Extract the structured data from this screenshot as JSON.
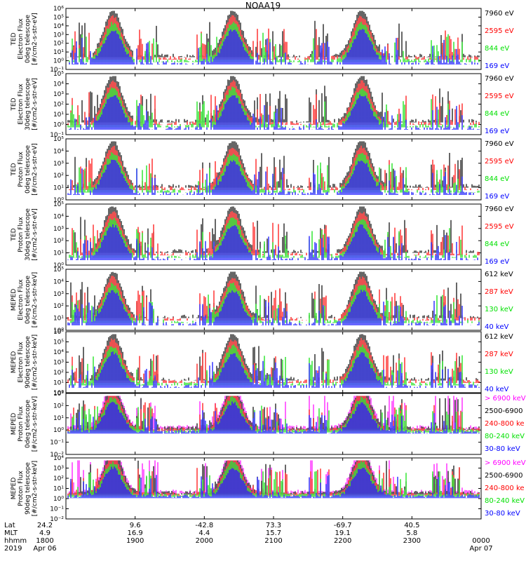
{
  "title": "NOAA19",
  "colors": {
    "black": "#000000",
    "red": "#ff0000",
    "green": "#00e000",
    "blue": "#0000ff",
    "magenta": "#ff00ff"
  },
  "chart_data": [
    {
      "type": "line",
      "ylabel": [
        "TED",
        "Electron Flux",
        "0deg telescope",
        "[#/cm2-s-str-eV]"
      ],
      "yticks": [
        "10⁻¹",
        "10⁰",
        "10¹",
        "10²",
        "10³",
        "10⁴",
        "10⁵",
        "10⁶"
      ],
      "ylim": [
        -1,
        6
      ],
      "log": true,
      "series": [
        {
          "name": "7960 eV",
          "color": "#000000"
        },
        {
          "name": "2595 eV",
          "color": "#ff0000"
        },
        {
          "name": "844 eV",
          "color": "#00e000"
        },
        {
          "name": "169 eV",
          "color": "#0000ff"
        }
      ]
    },
    {
      "type": "line",
      "ylabel": [
        "TED",
        "Electron Flux",
        "30deg telescope",
        "[#/cm2-s-str-eV]"
      ],
      "yticks": [
        "10⁻¹",
        "10⁰",
        "10¹",
        "10²",
        "10³",
        "10⁴",
        "10⁵"
      ],
      "ylim": [
        -1,
        5
      ],
      "log": true,
      "series": [
        {
          "name": "7960 eV",
          "color": "#000000"
        },
        {
          "name": "2595 eV",
          "color": "#ff0000"
        },
        {
          "name": "844 eV",
          "color": "#00e000"
        },
        {
          "name": "169 eV",
          "color": "#0000ff"
        }
      ]
    },
    {
      "type": "line",
      "ylabel": [
        "TED",
        "Proton Flux",
        "0deg telescope",
        "[#/cm2-s-str-eV]"
      ],
      "yticks": [
        "10⁰",
        "10¹",
        "10²",
        "10³",
        "10⁴",
        "10⁵"
      ],
      "ylim": [
        0,
        5
      ],
      "log": true,
      "series": [
        {
          "name": "7960 eV",
          "color": "#000000"
        },
        {
          "name": "2595 eV",
          "color": "#ff0000"
        },
        {
          "name": "844 eV",
          "color": "#00e000"
        },
        {
          "name": "169 eV",
          "color": "#0000ff"
        }
      ]
    },
    {
      "type": "line",
      "ylabel": [
        "TED",
        "Proton Flux",
        "30deg telescope",
        "[#/cm2-s-str-eV]"
      ],
      "yticks": [
        "10⁰",
        "10¹",
        "10²",
        "10³",
        "10⁴",
        "10⁵"
      ],
      "ylim": [
        0,
        5
      ],
      "log": true,
      "series": [
        {
          "name": "7960 eV",
          "color": "#000000"
        },
        {
          "name": "2595 eV",
          "color": "#ff0000"
        },
        {
          "name": "844 eV",
          "color": "#00e000"
        },
        {
          "name": "169 eV",
          "color": "#0000ff"
        }
      ]
    },
    {
      "type": "line",
      "ylabel": [
        "MEPED",
        "Electron Flux",
        "0deg telescope",
        "[#/cm2-s-str-keV]"
      ],
      "yticks": [
        "10⁰",
        "10¹",
        "10²",
        "10³",
        "10⁴",
        "10⁵"
      ],
      "ylim": [
        0,
        5
      ],
      "log": true,
      "series": [
        {
          "name": "612 keV",
          "color": "#000000"
        },
        {
          "name": "287 keV",
          "color": "#ff0000"
        },
        {
          "name": "130 keV",
          "color": "#00e000"
        },
        {
          "name": "40 keV",
          "color": "#0000ff"
        }
      ]
    },
    {
      "type": "line",
      "ylabel": [
        "MEPED",
        "Electron Flux",
        "90deg telescope",
        "[#/cm2-s-str-keV]"
      ],
      "yticks": [
        "10⁰",
        "10¹",
        "10²",
        "10³",
        "10⁴",
        "10⁵",
        "10⁶"
      ],
      "ylim": [
        0,
        6
      ],
      "log": true,
      "series": [
        {
          "name": "612 keV",
          "color": "#000000"
        },
        {
          "name": "287 keV",
          "color": "#ff0000"
        },
        {
          "name": "130 keV",
          "color": "#00e000"
        },
        {
          "name": "40 keV",
          "color": "#0000ff"
        }
      ]
    },
    {
      "type": "line",
      "ylabel": [
        "MEPED",
        "Proton Flux",
        "0deg telescope",
        "[#/cm2-s-str-keV]"
      ],
      "yticks": [
        "10⁻²",
        "10⁻¹",
        "10⁰",
        "10¹",
        "10²",
        "10³"
      ],
      "ylim": [
        -2,
        3
      ],
      "log": true,
      "series": [
        {
          "name": "> 6900 keV",
          "color": "#ff00ff"
        },
        {
          "name": "2500-6900",
          "color": "#000000"
        },
        {
          "name": "240-800 ke",
          "color": "#ff0000"
        },
        {
          "name": "80-240 keV",
          "color": "#00e000"
        },
        {
          "name": "30-80 keV",
          "color": "#0000ff"
        }
      ]
    },
    {
      "type": "line",
      "ylabel": [
        "MEPED",
        "Proton Flux",
        "90deg telescope",
        "[#/cm2-s-str-keV]"
      ],
      "yticks": [
        "10⁻²",
        "10⁻¹",
        "10⁰",
        "10¹",
        "10²",
        "10³",
        "10⁴"
      ],
      "ylim": [
        -2,
        4
      ],
      "log": true,
      "series": [
        {
          "name": "> 6900 keV",
          "color": "#ff00ff"
        },
        {
          "name": "2500-6900",
          "color": "#000000"
        },
        {
          "name": "240-800 ke",
          "color": "#ff0000"
        },
        {
          "name": "80-240 keV",
          "color": "#00e000"
        },
        {
          "name": "30-80 keV",
          "color": "#0000ff"
        }
      ]
    }
  ],
  "x_axis": {
    "row_labels": [
      "Lat",
      "MLT",
      "hhmm",
      "2019"
    ],
    "lat": [
      "24.2",
      "9.6",
      "-42.8",
      "73.3",
      "-69.7",
      "40.5"
    ],
    "mlt": [
      "4.9",
      "16.9",
      "4.4",
      "15.7",
      "19.1",
      "5.8"
    ],
    "hhmm": [
      "1800",
      "1900",
      "2000",
      "2100",
      "2200",
      "2300",
      "0000"
    ],
    "dates": [
      "Apr 06",
      "Apr 07"
    ]
  }
}
